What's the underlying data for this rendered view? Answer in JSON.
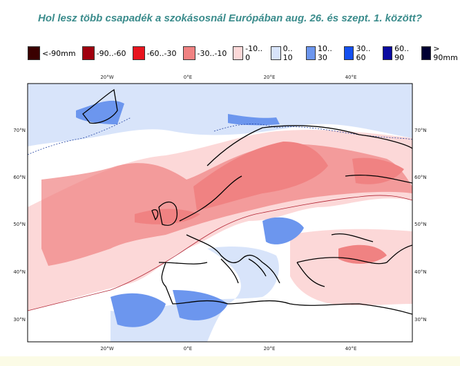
{
  "title": "Hol lesz több csapadék a szokásosnál Európában aug. 26. és szept. 1. között?",
  "legend": [
    {
      "label": "<-90mm",
      "color": "#3a0000"
    },
    {
      "label": "-90..-60",
      "color": "#a0000f"
    },
    {
      "label": "-60..-30",
      "color": "#e8141e"
    },
    {
      "label": "-30..-10",
      "color": "#f08282"
    },
    {
      "label": "-10.. 0",
      "color": "#fcd8d8"
    },
    {
      "label": "0.. 10",
      "color": "#d8e4fa"
    },
    {
      "label": "10.. 30",
      "color": "#6c96ee"
    },
    {
      "label": "30.. 60",
      "color": "#1450f0"
    },
    {
      "label": "60.. 90",
      "color": "#0a0aa0"
    },
    {
      "label": "> 90mm",
      "color": "#000032"
    }
  ],
  "map": {
    "lon_labels": [
      "20°W",
      "0°E",
      "20°E",
      "40°E"
    ],
    "lat_labels": [
      "70°N",
      "60°N",
      "50°N",
      "40°N",
      "30°N"
    ]
  }
}
